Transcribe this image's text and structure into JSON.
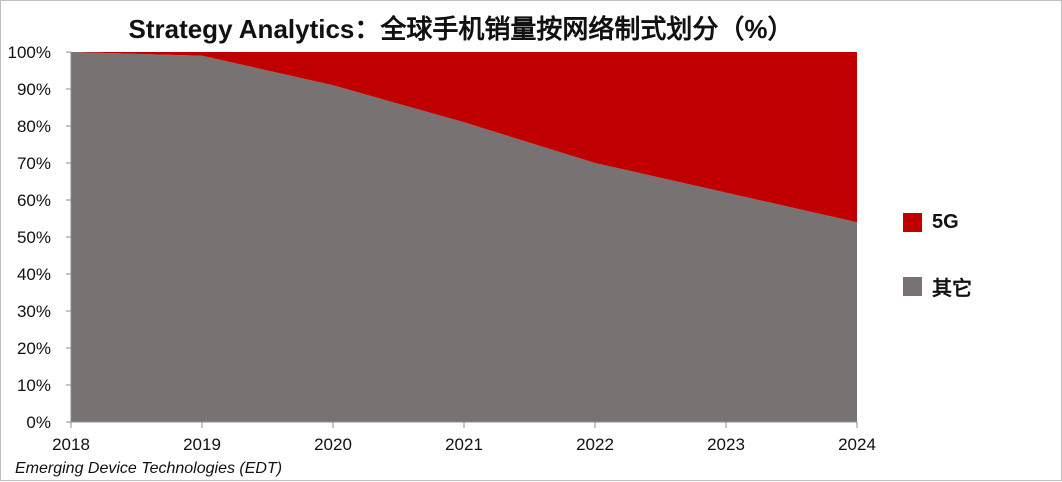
{
  "chart_data": {
    "type": "area",
    "stacked": true,
    "title": "Strategy Analytics：全球手机销量按网络制式划分（%）",
    "x": [
      "2018",
      "2019",
      "2020",
      "2021",
      "2022",
      "2023",
      "2024"
    ],
    "y_ticks": [
      "0%",
      "10%",
      "20%",
      "30%",
      "40%",
      "50%",
      "60%",
      "70%",
      "80%",
      "90%",
      "100%"
    ],
    "ylim": [
      0,
      100
    ],
    "unit": "%",
    "grid": false,
    "legend_position": "right",
    "series": [
      {
        "name": "其它",
        "color": "#787372",
        "values": [
          100,
          99,
          91,
          81,
          70,
          62,
          54
        ]
      },
      {
        "name": "5G",
        "color": "#c00000",
        "values": [
          0,
          1,
          9,
          19,
          30,
          38,
          46
        ]
      }
    ]
  },
  "footer": {
    "source": "Emerging Device Technologies (EDT)"
  },
  "legend": [
    {
      "name": "5G",
      "color": "#c00000"
    },
    {
      "name": "其它",
      "color": "#787372"
    }
  ]
}
